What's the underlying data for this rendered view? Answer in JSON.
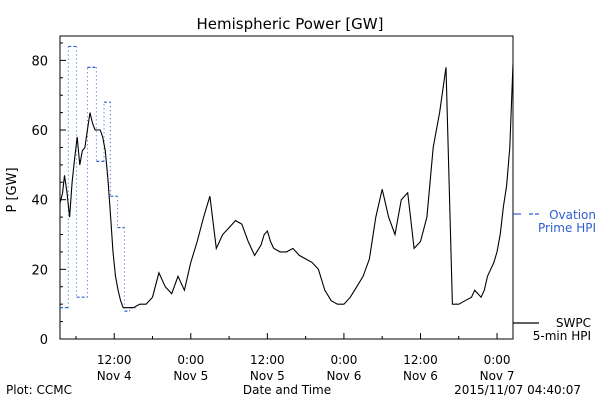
{
  "chart_data": {
    "type": "line",
    "title": "Hemispheric Power [GW]",
    "ylabel": "P [GW]",
    "xlabel": "Date and Time",
    "ylim": [
      0,
      87
    ],
    "yticks": [
      0,
      20,
      40,
      60,
      80
    ],
    "xticks": [
      {
        "time": "12:00",
        "date": "Nov 4"
      },
      {
        "time": "0:00",
        "date": "Nov 5"
      },
      {
        "time": "12:00",
        "date": "Nov 5"
      },
      {
        "time": "0:00",
        "date": "Nov 6"
      },
      {
        "time": "12:00",
        "date": "Nov 6"
      },
      {
        "time": "0:00",
        "date": "Nov 7"
      }
    ],
    "xtick_hours": [
      12,
      24,
      36,
      48,
      60,
      72
    ],
    "xlim": [
      3.5,
      74.5
    ],
    "grid": false,
    "series": [
      {
        "name": "Ovation Prime HPI",
        "name_lines": [
          "Ovation",
          "Prime HPI"
        ],
        "color": "#2f5fd0",
        "style": "step-dotted",
        "x": [
          3.5,
          4.8,
          6.1,
          7.8,
          9.2,
          10.4,
          11.4,
          12.5,
          13.6,
          14.4
        ],
        "values": [
          9,
          84,
          12,
          78,
          51,
          68,
          41,
          32,
          8,
          9
        ]
      },
      {
        "name": "SWPC 5-min HPI",
        "name_lines": [
          "SWPC",
          "5-min HPI"
        ],
        "color": "#000000",
        "style": "solid",
        "x": [
          3.5,
          3.9,
          4.2,
          4.6,
          5.0,
          5.4,
          5.8,
          6.2,
          6.6,
          7.0,
          7.4,
          7.8,
          8.2,
          8.6,
          9.0,
          9.4,
          9.8,
          10.2,
          10.6,
          11.0,
          11.4,
          11.8,
          12.2,
          12.6,
          13.0,
          13.4,
          13.8,
          14.2,
          14.6,
          15.0,
          16.0,
          17.0,
          18.0,
          19.0,
          20.0,
          21.0,
          22.0,
          23.0,
          24.0,
          25.0,
          26.0,
          27.0,
          28.0,
          29.0,
          30.0,
          31.0,
          32.0,
          33.0,
          34.0,
          35.0,
          35.5,
          36.0,
          36.5,
          37.0,
          38.0,
          39.0,
          40.0,
          41.0,
          42.0,
          43.0,
          44.0,
          45.0,
          46.0,
          47.0,
          48.0,
          49.0,
          50.0,
          51.0,
          52.0,
          53.0,
          54.0,
          55.0,
          56.0,
          57.0,
          58.0,
          59.0,
          60.0,
          61.0,
          62.0,
          63.0,
          64.0,
          65.0,
          66.0,
          67.0,
          68.0,
          68.5,
          69.0,
          69.5,
          70.0,
          70.5,
          71.0,
          71.5,
          72.0,
          72.5,
          73.0,
          73.5,
          74.0,
          74.5
        ],
        "values": [
          39,
          42,
          47,
          42,
          35,
          45,
          52,
          58,
          50,
          54,
          55,
          60,
          65,
          62,
          60,
          60,
          60,
          58,
          54,
          46,
          36,
          25,
          18,
          14,
          11,
          9,
          9,
          9,
          9,
          9,
          10,
          10,
          12,
          19,
          15,
          13,
          18,
          14,
          22,
          28,
          35,
          41,
          26,
          30,
          32,
          34,
          33,
          28,
          24,
          27,
          30,
          31,
          28,
          26,
          25,
          25,
          26,
          24,
          23,
          22,
          20,
          14,
          11,
          10,
          10,
          12,
          15,
          18,
          23,
          35,
          43,
          35,
          30,
          40,
          42,
          26,
          28,
          35,
          55,
          65,
          78,
          10,
          10,
          11,
          12,
          14,
          13,
          12,
          14,
          18,
          20,
          22,
          25,
          30,
          38,
          44,
          55,
          79
        ]
      }
    ]
  },
  "footer": {
    "left": "Plot: CCMC",
    "right": "2015/11/07 04:40:07"
  }
}
